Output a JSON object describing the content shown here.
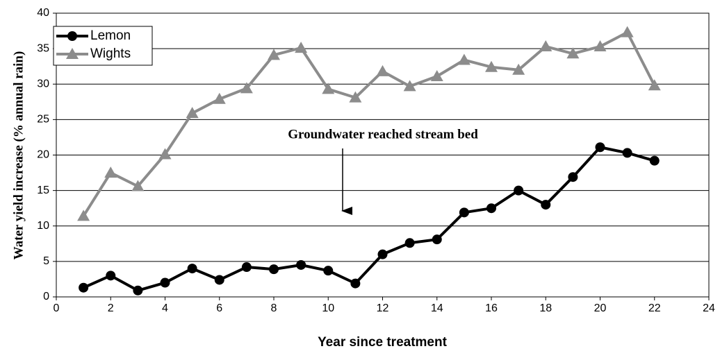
{
  "chart_data": {
    "type": "line",
    "annotation": "Groundwater reached stream bed",
    "x_label": "Year since treatment",
    "y_label": "Water yield increase (% annual rain)",
    "x": [
      1,
      2,
      3,
      4,
      5,
      6,
      7,
      8,
      9,
      10,
      11,
      12,
      13,
      14,
      15,
      16,
      17,
      18,
      19,
      20,
      21,
      22
    ],
    "series": [
      {
        "name": "Lemon",
        "color": "#000000",
        "marker": "circle",
        "values": [
          1.3,
          3.0,
          0.9,
          2.0,
          4.0,
          2.4,
          4.2,
          3.9,
          4.5,
          3.7,
          1.9,
          6.0,
          7.6,
          8.1,
          11.9,
          12.5,
          15.0,
          13.0,
          16.9,
          21.1,
          20.3,
          19.2
        ]
      },
      {
        "name": "Wights",
        "color": "#8c8c8c",
        "marker": "triangle",
        "values": [
          11.4,
          17.5,
          15.6,
          20.1,
          25.9,
          27.9,
          29.4,
          34.1,
          35.1,
          29.3,
          28.1,
          31.8,
          29.7,
          31.1,
          33.4,
          32.4,
          32.0,
          35.3,
          34.3,
          35.3,
          37.3,
          29.8
        ]
      }
    ],
    "xlim": [
      0,
      24
    ],
    "xticks": [
      0,
      2,
      4,
      6,
      8,
      10,
      12,
      14,
      16,
      18,
      20,
      22,
      24
    ],
    "ylim": [
      0,
      40
    ],
    "yticks": [
      0,
      5,
      10,
      15,
      20,
      25,
      30,
      35,
      40
    ],
    "grid": true,
    "legend": "top-left"
  }
}
